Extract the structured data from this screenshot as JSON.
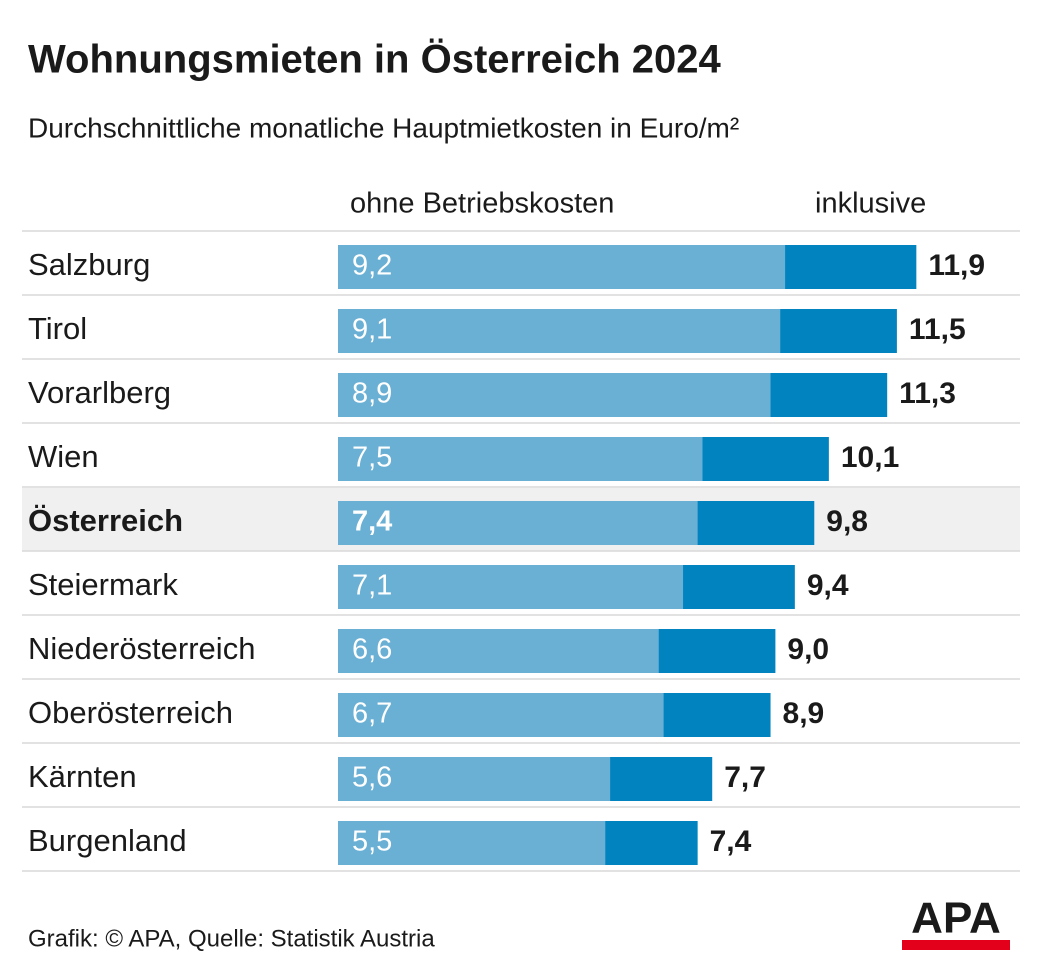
{
  "chart_data": {
    "type": "overlap-bar",
    "title": "Wohnungsmieten in Österreich 2024",
    "subtitle": "Durchschnittliche monatliche Hauptmietkosten in Euro/m²",
    "categories": [
      "Salzburg",
      "Tirol",
      "Vorarlberg",
      "Wien",
      "Österreich",
      "Steiermark",
      "Niederösterreich",
      "Oberösterreich",
      "Kärnten",
      "Burgenland"
    ],
    "series": [
      {
        "name": "ohne Betriebskosten",
        "color": "#6aafd4",
        "values": [
          9.2,
          9.1,
          8.9,
          7.5,
          7.4,
          7.1,
          6.6,
          6.7,
          5.6,
          5.5
        ],
        "value_labels": [
          "9,2",
          "9,1",
          "8,9",
          "7,5",
          "7,4",
          "7,1",
          "6,6",
          "6,7",
          "5,6",
          "5,5"
        ]
      },
      {
        "name": "inklusive",
        "color": "#0083bf",
        "values": [
          11.9,
          11.5,
          11.3,
          10.1,
          9.8,
          9.4,
          9.0,
          8.9,
          7.7,
          7.4
        ],
        "value_labels": [
          "11,9",
          "11,5",
          "11,3",
          "10,1",
          "9,8",
          "9,4",
          "9,0",
          "8,9",
          "7,7",
          "7,4"
        ]
      }
    ],
    "highlight": 4,
    "source": "Grafik: © APA, Quelle: Statistik Austria",
    "logo": "APA"
  }
}
